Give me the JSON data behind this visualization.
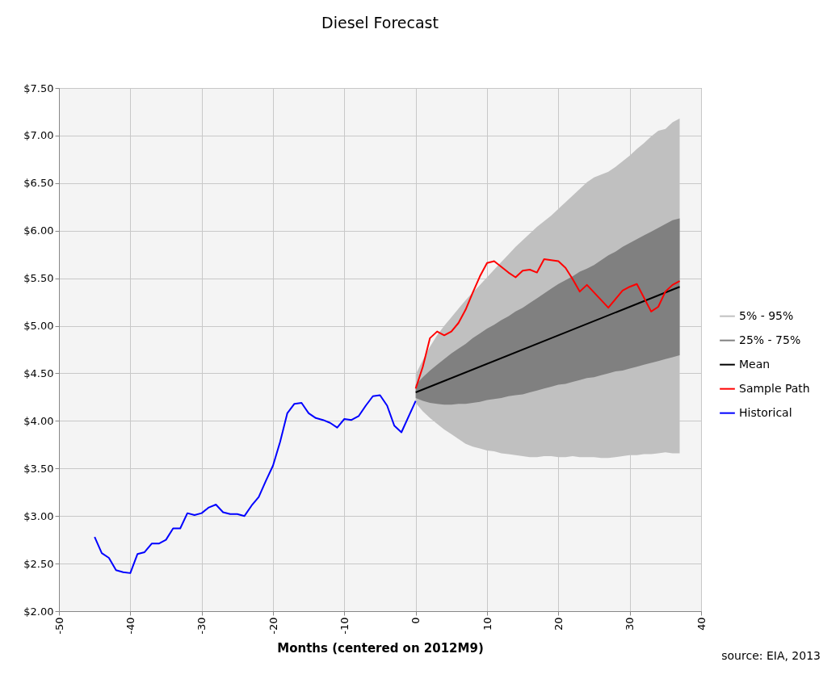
{
  "chart_data": {
    "type": "line",
    "title": "Diesel Forecast",
    "xlabel": "Months (centered on 2012M9)",
    "xlim": [
      -50,
      40
    ],
    "xticks": [
      -50,
      -40,
      -30,
      -20,
      -10,
      0,
      10,
      20,
      30,
      40
    ],
    "ylim": [
      2,
      7.5
    ],
    "yticks": [
      {
        "value": 2,
        "label": "$2.00"
      },
      {
        "value": 2.5,
        "label": "$2.50"
      },
      {
        "value": 3,
        "label": "$3.00"
      },
      {
        "value": 3.5,
        "label": "$3.50"
      },
      {
        "value": 4,
        "label": "$4.00"
      },
      {
        "value": 4.5,
        "label": "$4.50"
      },
      {
        "value": 5,
        "label": "$5.00"
      },
      {
        "value": 5.5,
        "label": "$5.50"
      },
      {
        "value": 6,
        "label": "$6.00"
      },
      {
        "value": 6.5,
        "label": "$6.50"
      },
      {
        "value": 7,
        "label": "$7.00"
      },
      {
        "value": 7.5,
        "label": "$7.50"
      }
    ],
    "grid": true,
    "legend": "right",
    "marker": "none",
    "line_style": "solid",
    "annotations": [
      "source: EIA, 2013"
    ],
    "series": [
      {
        "name": "5% - 95%",
        "type": "area",
        "color": "#c0c0c0",
        "x": [
          0,
          1,
          2,
          3,
          4,
          5,
          6,
          7,
          8,
          9,
          10,
          11,
          12,
          13,
          14,
          15,
          16,
          17,
          18,
          19,
          20,
          21,
          22,
          23,
          24,
          25,
          26,
          27,
          28,
          29,
          30,
          31,
          32,
          33,
          34,
          35,
          36,
          37
        ],
        "values": [
          null,
          null,
          null,
          null,
          null,
          null,
          null,
          null,
          null,
          null,
          null,
          null,
          null,
          null,
          null,
          null,
          null,
          null,
          null,
          null,
          null,
          null,
          null,
          null,
          null,
          null,
          null,
          null,
          null,
          null,
          null,
          null,
          null,
          null,
          null,
          null,
          null,
          null
        ],
        "upper": [
          4.49,
          4.64,
          4.78,
          4.9,
          5.0,
          5.09,
          5.18,
          5.27,
          5.35,
          5.43,
          5.51,
          5.59,
          5.67,
          5.75,
          5.83,
          5.9,
          5.97,
          6.04,
          6.1,
          6.16,
          6.23,
          6.3,
          6.37,
          6.44,
          6.51,
          6.56,
          6.59,
          6.62,
          6.67,
          6.73,
          6.79,
          6.86,
          6.92,
          6.99,
          7.05,
          7.07,
          7.14,
          7.18
        ],
        "lower": [
          4.19,
          4.1,
          4.03,
          3.97,
          3.91,
          3.86,
          3.81,
          3.76,
          3.73,
          3.71,
          3.69,
          3.68,
          3.66,
          3.65,
          3.64,
          3.63,
          3.62,
          3.62,
          3.63,
          3.63,
          3.62,
          3.62,
          3.63,
          3.62,
          3.62,
          3.62,
          3.61,
          3.61,
          3.62,
          3.63,
          3.64,
          3.64,
          3.65,
          3.65,
          3.66,
          3.67,
          3.66,
          3.66
        ]
      },
      {
        "name": "25% - 75%",
        "type": "area",
        "color": "#808080",
        "x": [
          0,
          1,
          2,
          3,
          4,
          5,
          6,
          7,
          8,
          9,
          10,
          11,
          12,
          13,
          14,
          15,
          16,
          17,
          18,
          19,
          20,
          21,
          22,
          23,
          24,
          25,
          26,
          27,
          28,
          29,
          30,
          31,
          32,
          33,
          34,
          35,
          36,
          37
        ],
        "values": [
          null,
          null,
          null,
          null,
          null,
          null,
          null,
          null,
          null,
          null,
          null,
          null,
          null,
          null,
          null,
          null,
          null,
          null,
          null,
          null,
          null,
          null,
          null,
          null,
          null,
          null,
          null,
          null,
          null,
          null,
          null,
          null,
          null,
          null,
          null,
          null,
          null,
          null
        ],
        "upper": [
          4.38,
          4.46,
          4.53,
          4.59,
          4.65,
          4.71,
          4.76,
          4.81,
          4.87,
          4.92,
          4.97,
          5.01,
          5.06,
          5.1,
          5.15,
          5.19,
          5.24,
          5.29,
          5.34,
          5.39,
          5.44,
          5.48,
          5.52,
          5.57,
          5.6,
          5.64,
          5.69,
          5.74,
          5.78,
          5.83,
          5.87,
          5.91,
          5.95,
          5.99,
          6.03,
          6.07,
          6.11,
          6.13
        ],
        "lower": [
          4.24,
          4.21,
          4.19,
          4.18,
          4.17,
          4.17,
          4.18,
          4.18,
          4.19,
          4.2,
          4.22,
          4.23,
          4.24,
          4.26,
          4.27,
          4.28,
          4.3,
          4.32,
          4.34,
          4.36,
          4.38,
          4.39,
          4.41,
          4.43,
          4.45,
          4.46,
          4.48,
          4.5,
          4.52,
          4.53,
          4.55,
          4.57,
          4.59,
          4.61,
          4.63,
          4.65,
          4.67,
          4.69
        ]
      },
      {
        "name": "Mean",
        "color": "#000000",
        "x": [
          0,
          37
        ],
        "values": [
          4.3,
          5.41
        ]
      },
      {
        "name": "Sample Path",
        "color": "#ff0000",
        "x": [
          0,
          1,
          2,
          3,
          4,
          5,
          6,
          7,
          8,
          9,
          10,
          11,
          12,
          13,
          14,
          15,
          16,
          17,
          18,
          19,
          20,
          21,
          22,
          23,
          24,
          27,
          29,
          30,
          31,
          33,
          34,
          35,
          36,
          37
        ],
        "values": [
          4.34,
          4.57,
          4.87,
          4.94,
          4.9,
          4.94,
          5.03,
          5.17,
          5.35,
          5.52,
          5.66,
          5.68,
          5.62,
          5.56,
          5.51,
          5.58,
          5.59,
          5.56,
          5.7,
          5.69,
          5.68,
          5.61,
          5.49,
          5.36,
          5.43,
          5.19,
          5.37,
          5.41,
          5.44,
          5.15,
          5.2,
          5.36,
          5.43,
          5.47
        ]
      },
      {
        "name": "Historical",
        "color": "#0000ff",
        "x": [
          -45,
          -44,
          -43,
          -42,
          -41,
          -40,
          -39,
          -38,
          -37,
          -36,
          -35,
          -34,
          -33,
          -32,
          -31,
          -30,
          -29,
          -28,
          -27,
          -26,
          -25,
          -24,
          -23,
          -22,
          -21,
          -20,
          -19,
          -18,
          -17,
          -16,
          -15,
          -14,
          -13,
          -12,
          -11,
          -10,
          -9,
          -8,
          -7,
          -6,
          -5,
          -4,
          -3,
          -2,
          0
        ],
        "values": [
          2.78,
          2.61,
          2.56,
          2.43,
          2.41,
          2.4,
          2.6,
          2.62,
          2.71,
          2.71,
          2.75,
          2.87,
          2.87,
          3.03,
          3.01,
          3.03,
          3.09,
          3.12,
          3.04,
          3.02,
          3.02,
          3.0,
          3.11,
          3.2,
          3.37,
          3.53,
          3.78,
          4.08,
          4.18,
          4.19,
          4.08,
          4.03,
          4.01,
          3.98,
          3.93,
          4.02,
          4.01,
          4.05,
          4.16,
          4.26,
          4.27,
          4.16,
          3.95,
          3.88,
          4.21
        ]
      }
    ]
  }
}
